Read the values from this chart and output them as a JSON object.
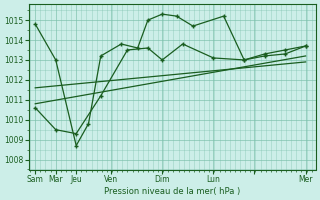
{
  "bg_color": "#cceee8",
  "grid_color": "#7abfaa",
  "line_color": "#1a5e20",
  "marker_color": "#1a5e20",
  "xlabel": "Pression niveau de la mer( hPa )",
  "ylim": [
    1007.5,
    1015.8
  ],
  "yticks": [
    1008,
    1009,
    1010,
    1011,
    1012,
    1013,
    1014,
    1015
  ],
  "xlim": [
    0,
    14
  ],
  "xtick_positions": [
    0.3,
    1.3,
    2.3,
    4.0,
    6.5,
    9.0,
    11.0,
    13.5
  ],
  "xtick_labels": [
    "Sam",
    "Mar",
    "Jeu",
    "Ven",
    "Dim",
    "Lun",
    "",
    "Mer"
  ],
  "series1_x": [
    0.3,
    1.3,
    2.3,
    2.9,
    3.5,
    4.5,
    5.3,
    5.8,
    6.5,
    7.2,
    8.0,
    9.5,
    10.5,
    11.5,
    12.5,
    13.5
  ],
  "series1_y": [
    1014.8,
    1013.0,
    1008.7,
    1009.8,
    1013.2,
    1013.8,
    1013.6,
    1015.0,
    1015.3,
    1015.2,
    1014.7,
    1015.2,
    1013.0,
    1013.2,
    1013.3,
    1013.7
  ],
  "series2_x": [
    0.3,
    1.3,
    2.3,
    3.5,
    4.8,
    5.8,
    6.5,
    7.5,
    9.0,
    10.5,
    11.5,
    12.5,
    13.5
  ],
  "series2_y": [
    1010.6,
    1009.5,
    1009.3,
    1011.2,
    1013.5,
    1013.6,
    1013.0,
    1013.8,
    1013.1,
    1013.0,
    1013.3,
    1013.5,
    1013.7
  ],
  "trend1_x": [
    0.3,
    13.5
  ],
  "trend1_y": [
    1010.8,
    1013.2
  ],
  "trend2_x": [
    0.3,
    13.5
  ],
  "trend2_y": [
    1011.6,
    1012.9
  ]
}
